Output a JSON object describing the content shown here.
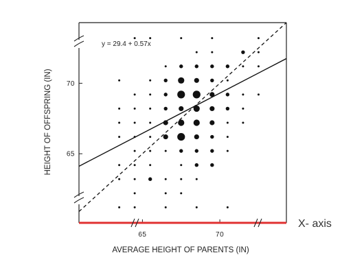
{
  "chart_data": {
    "type": "scatter",
    "title": "",
    "xlabel": "AVERAGE HEIGHT OF PARENTS (IN)",
    "ylabel": "HEIGHT OF OFFSPRING (IN)",
    "xlim": [
      60.9,
      74.3
    ],
    "ylim": [
      60.1,
      74.3
    ],
    "x_ticks": [
      65,
      70
    ],
    "y_ticks": [
      65,
      70
    ],
    "grid": false,
    "equation": "y = 29.4 + 0.57x",
    "regression": {
      "intercept": 29.4,
      "slope": 0.57
    },
    "identity_line": {
      "intercept": 0,
      "slope": 1
    },
    "axis_break_marks": true,
    "x_axis_highlight_color": "#e03030",
    "x_axis_note": "X- axis",
    "points": [
      {
        "x": 64.5,
        "y": 73.2,
        "w": 1
      },
      {
        "x": 65.5,
        "y": 73.2,
        "w": 1
      },
      {
        "x": 67.5,
        "y": 73.2,
        "w": 1
      },
      {
        "x": 69.5,
        "y": 73.2,
        "w": 1
      },
      {
        "x": 72.5,
        "y": 73.2,
        "w": 1
      },
      {
        "x": 68.5,
        "y": 72.2,
        "w": 1
      },
      {
        "x": 69.5,
        "y": 72.2,
        "w": 1
      },
      {
        "x": 71.5,
        "y": 72.2,
        "w": 2
      },
      {
        "x": 72.5,
        "y": 72.2,
        "w": 1
      },
      {
        "x": 66.5,
        "y": 71.2,
        "w": 1
      },
      {
        "x": 67.5,
        "y": 71.2,
        "w": 2
      },
      {
        "x": 68.5,
        "y": 71.2,
        "w": 2
      },
      {
        "x": 69.5,
        "y": 71.2,
        "w": 2
      },
      {
        "x": 70.5,
        "y": 71.2,
        "w": 2
      },
      {
        "x": 71.5,
        "y": 71.2,
        "w": 1
      },
      {
        "x": 72.5,
        "y": 71.2,
        "w": 1
      },
      {
        "x": 63.5,
        "y": 70.2,
        "w": 1
      },
      {
        "x": 65.5,
        "y": 70.2,
        "w": 1
      },
      {
        "x": 66.5,
        "y": 70.2,
        "w": 2
      },
      {
        "x": 67.5,
        "y": 70.2,
        "w": 4
      },
      {
        "x": 68.5,
        "y": 70.2,
        "w": 3
      },
      {
        "x": 69.5,
        "y": 70.2,
        "w": 2
      },
      {
        "x": 70.5,
        "y": 70.2,
        "w": 1
      },
      {
        "x": 64.5,
        "y": 69.2,
        "w": 1
      },
      {
        "x": 65.5,
        "y": 69.2,
        "w": 1
      },
      {
        "x": 66.5,
        "y": 69.2,
        "w": 2
      },
      {
        "x": 67.5,
        "y": 69.2,
        "w": 5
      },
      {
        "x": 68.5,
        "y": 69.2,
        "w": 5
      },
      {
        "x": 69.5,
        "y": 69.2,
        "w": 3
      },
      {
        "x": 70.5,
        "y": 69.2,
        "w": 2
      },
      {
        "x": 71.5,
        "y": 69.2,
        "w": 1
      },
      {
        "x": 72.5,
        "y": 69.2,
        "w": 1
      },
      {
        "x": 63.5,
        "y": 68.2,
        "w": 1
      },
      {
        "x": 64.5,
        "y": 68.2,
        "w": 1
      },
      {
        "x": 65.5,
        "y": 68.2,
        "w": 1
      },
      {
        "x": 66.5,
        "y": 68.2,
        "w": 2
      },
      {
        "x": 67.5,
        "y": 68.2,
        "w": 3
      },
      {
        "x": 68.5,
        "y": 68.2,
        "w": 4
      },
      {
        "x": 69.5,
        "y": 68.2,
        "w": 3
      },
      {
        "x": 70.5,
        "y": 68.2,
        "w": 2
      },
      {
        "x": 71.5,
        "y": 68.2,
        "w": 1
      },
      {
        "x": 63.5,
        "y": 67.2,
        "w": 1
      },
      {
        "x": 64.5,
        "y": 67.2,
        "w": 1
      },
      {
        "x": 65.5,
        "y": 67.2,
        "w": 1
      },
      {
        "x": 66.5,
        "y": 67.2,
        "w": 3
      },
      {
        "x": 67.5,
        "y": 67.2,
        "w": 4
      },
      {
        "x": 68.5,
        "y": 67.2,
        "w": 4
      },
      {
        "x": 69.5,
        "y": 67.2,
        "w": 3
      },
      {
        "x": 70.5,
        "y": 67.2,
        "w": 1
      },
      {
        "x": 71.5,
        "y": 67.2,
        "w": 1
      },
      {
        "x": 63.5,
        "y": 66.2,
        "w": 1
      },
      {
        "x": 64.5,
        "y": 66.2,
        "w": 1
      },
      {
        "x": 65.5,
        "y": 66.2,
        "w": 1
      },
      {
        "x": 66.5,
        "y": 66.2,
        "w": 3
      },
      {
        "x": 67.5,
        "y": 66.2,
        "w": 5
      },
      {
        "x": 68.5,
        "y": 66.2,
        "w": 3
      },
      {
        "x": 69.5,
        "y": 66.2,
        "w": 2
      },
      {
        "x": 70.5,
        "y": 66.2,
        "w": 1
      },
      {
        "x": 64.5,
        "y": 65.2,
        "w": 1
      },
      {
        "x": 65.5,
        "y": 65.2,
        "w": 1
      },
      {
        "x": 66.5,
        "y": 65.2,
        "w": 1
      },
      {
        "x": 67.5,
        "y": 65.2,
        "w": 2
      },
      {
        "x": 68.5,
        "y": 65.2,
        "w": 2
      },
      {
        "x": 69.5,
        "y": 65.2,
        "w": 2
      },
      {
        "x": 70.5,
        "y": 65.2,
        "w": 1
      },
      {
        "x": 63.5,
        "y": 64.2,
        "w": 1
      },
      {
        "x": 64.5,
        "y": 64.2,
        "w": 1
      },
      {
        "x": 65.5,
        "y": 64.2,
        "w": 1
      },
      {
        "x": 67.5,
        "y": 64.2,
        "w": 1
      },
      {
        "x": 68.5,
        "y": 64.2,
        "w": 2
      },
      {
        "x": 69.5,
        "y": 64.2,
        "w": 2
      },
      {
        "x": 63.5,
        "y": 63.2,
        "w": 1
      },
      {
        "x": 64.5,
        "y": 63.2,
        "w": 1
      },
      {
        "x": 65.5,
        "y": 63.2,
        "w": 2
      },
      {
        "x": 66.5,
        "y": 63.2,
        "w": 1
      },
      {
        "x": 67.5,
        "y": 63.2,
        "w": 1
      },
      {
        "x": 68.5,
        "y": 63.2,
        "w": 1
      },
      {
        "x": 64.5,
        "y": 62.2,
        "w": 1
      },
      {
        "x": 66.5,
        "y": 62.2,
        "w": 1
      },
      {
        "x": 67.5,
        "y": 62.2,
        "w": 1
      },
      {
        "x": 63.5,
        "y": 61.2,
        "w": 1
      },
      {
        "x": 64.5,
        "y": 61.2,
        "w": 1
      },
      {
        "x": 66.5,
        "y": 61.2,
        "w": 1
      },
      {
        "x": 68.5,
        "y": 61.2,
        "w": 1
      },
      {
        "x": 70.5,
        "y": 61.2,
        "w": 1
      }
    ]
  }
}
